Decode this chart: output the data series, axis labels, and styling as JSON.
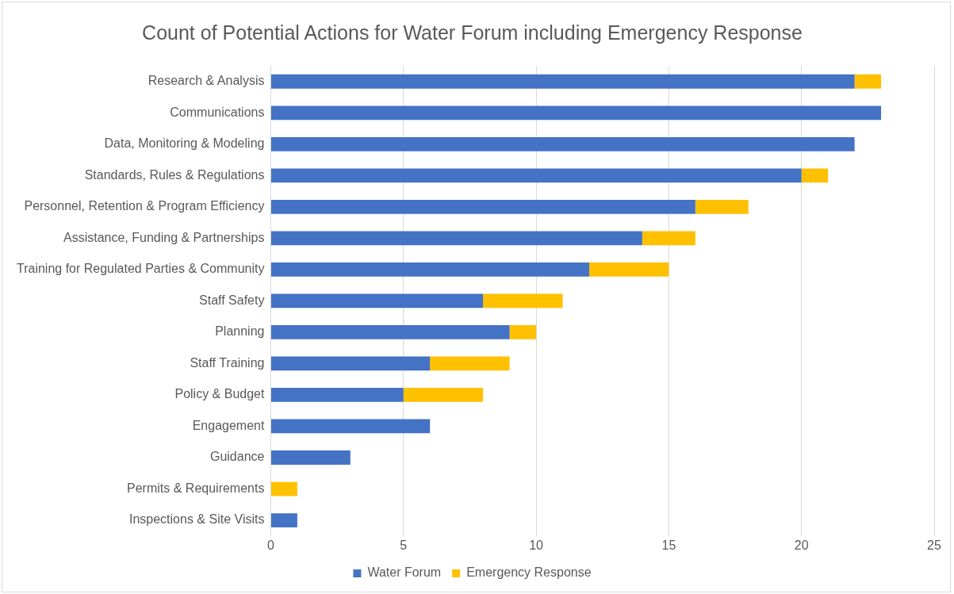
{
  "chart_data": {
    "type": "bar",
    "orientation": "horizontal",
    "stacked": true,
    "title": "Count of Potential Actions for Water Forum including Emergency Response",
    "categories": [
      "Research & Analysis",
      "Communications",
      "Data, Monitoring & Modeling",
      "Standards, Rules & Regulations",
      "Personnel, Retention & Program Efficiency",
      "Assistance, Funding & Partnerships",
      "Training for Regulated Parties & Community",
      "Staff Safety",
      "Planning",
      "Staff Training",
      "Policy & Budget",
      "Engagement",
      "Guidance",
      "Permits & Requirements",
      "Inspections & Site Visits"
    ],
    "series": [
      {
        "name": "Water Forum",
        "color": "#4472c4",
        "values": [
          22,
          23,
          22,
          20,
          16,
          14,
          12,
          8,
          9,
          6,
          5,
          6,
          3,
          0,
          1
        ]
      },
      {
        "name": "Emergency Response",
        "color": "#ffc000",
        "values": [
          1,
          0,
          0,
          1,
          2,
          2,
          3,
          3,
          1,
          3,
          3,
          0,
          0,
          1,
          0
        ]
      }
    ],
    "xlim": [
      0,
      25
    ],
    "xticks": [
      0,
      5,
      10,
      15,
      20,
      25
    ],
    "grid": "x",
    "legend": "bottom"
  }
}
